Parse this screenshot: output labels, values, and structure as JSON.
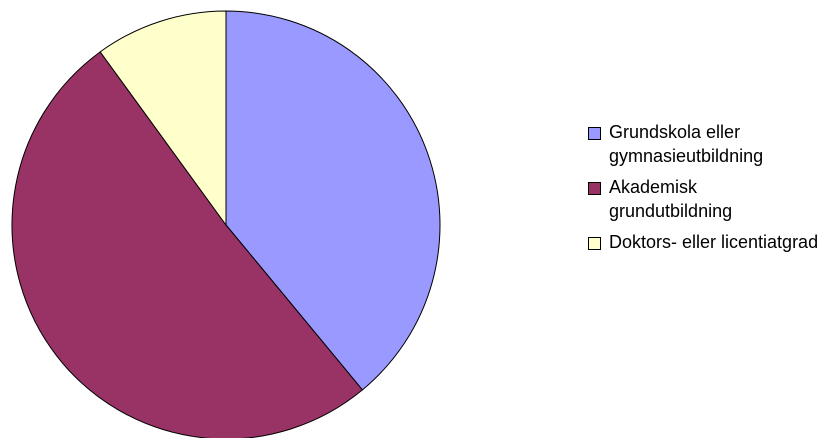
{
  "chart_data": {
    "type": "pie",
    "categories": [
      "Grundskola eller gymnasieutbildning",
      "Akademisk grundutbildning",
      "Doktors- eller licentiatgrad"
    ],
    "values": [
      39,
      51,
      10
    ],
    "colors": [
      "#9999ff",
      "#993366",
      "#ffffcc"
    ],
    "legend": "right"
  }
}
